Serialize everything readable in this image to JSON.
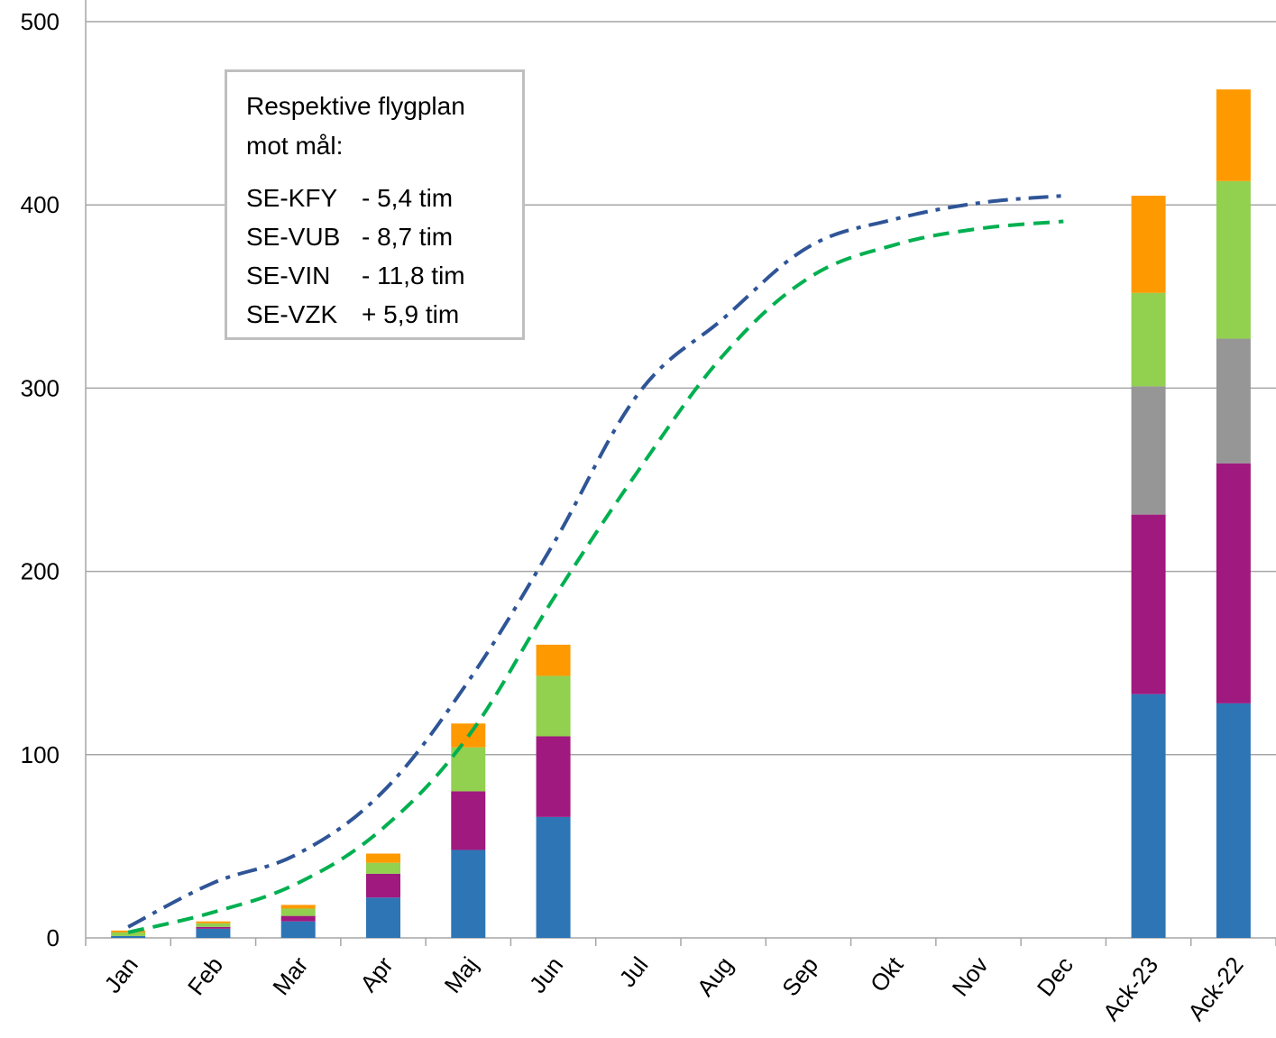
{
  "chart_data": {
    "type": "bar",
    "stacked": true,
    "categories": [
      "Jan",
      "Feb",
      "Mar",
      "Apr",
      "Maj",
      "Jun",
      "Jul",
      "Aug",
      "Sep",
      "Okt",
      "Nov",
      "Dec",
      "Ack-23",
      "Ack-22"
    ],
    "ylim": [
      0,
      500
    ],
    "yticks": [
      "0",
      "100",
      "200",
      "300",
      "400",
      "500"
    ],
    "grid": true,
    "series": [
      {
        "color": "#2e75b6",
        "values": [
          1,
          5,
          9,
          22,
          48,
          66,
          null,
          null,
          null,
          null,
          null,
          null,
          133,
          128
        ]
      },
      {
        "color": "#a0197f",
        "values": [
          0,
          1,
          3,
          13,
          32,
          44,
          null,
          null,
          null,
          null,
          null,
          null,
          98,
          131
        ]
      },
      {
        "color": "#969696",
        "values": [
          0,
          0,
          0,
          0,
          0,
          0,
          null,
          null,
          null,
          null,
          null,
          null,
          70,
          68
        ]
      },
      {
        "color": "#92d050",
        "values": [
          2,
          2,
          4,
          6,
          24,
          33,
          null,
          null,
          null,
          null,
          null,
          null,
          51,
          86
        ]
      },
      {
        "color": "#ff9900",
        "values": [
          1,
          1,
          2,
          5,
          13,
          17,
          null,
          null,
          null,
          null,
          null,
          null,
          53,
          50
        ]
      }
    ],
    "lines": [
      {
        "color": "#2f5597",
        "style": "dash-dot",
        "values": [
          6,
          30,
          46,
          80,
          140,
          215,
          297,
          338,
          377,
          392,
          401,
          405,
          null,
          null
        ]
      },
      {
        "color": "#00b050",
        "style": "dashed",
        "values": [
          3,
          14,
          30,
          60,
          110,
          185,
          255,
          318,
          360,
          378,
          387,
          391,
          null,
          null
        ]
      }
    ]
  },
  "legend": {
    "heading_line1": "Respektive   flygplan",
    "heading_line2": "mot mål:",
    "rows": [
      {
        "reg": "SE-KFY",
        "value": "- 5,4 tim"
      },
      {
        "reg": "SE-VUB",
        "value": "- 8,7 tim"
      },
      {
        "reg": "SE-VIN",
        "value": "- 11,8 tim"
      },
      {
        "reg": "SE-VZK",
        "value": "+ 5,9 tim"
      }
    ]
  }
}
